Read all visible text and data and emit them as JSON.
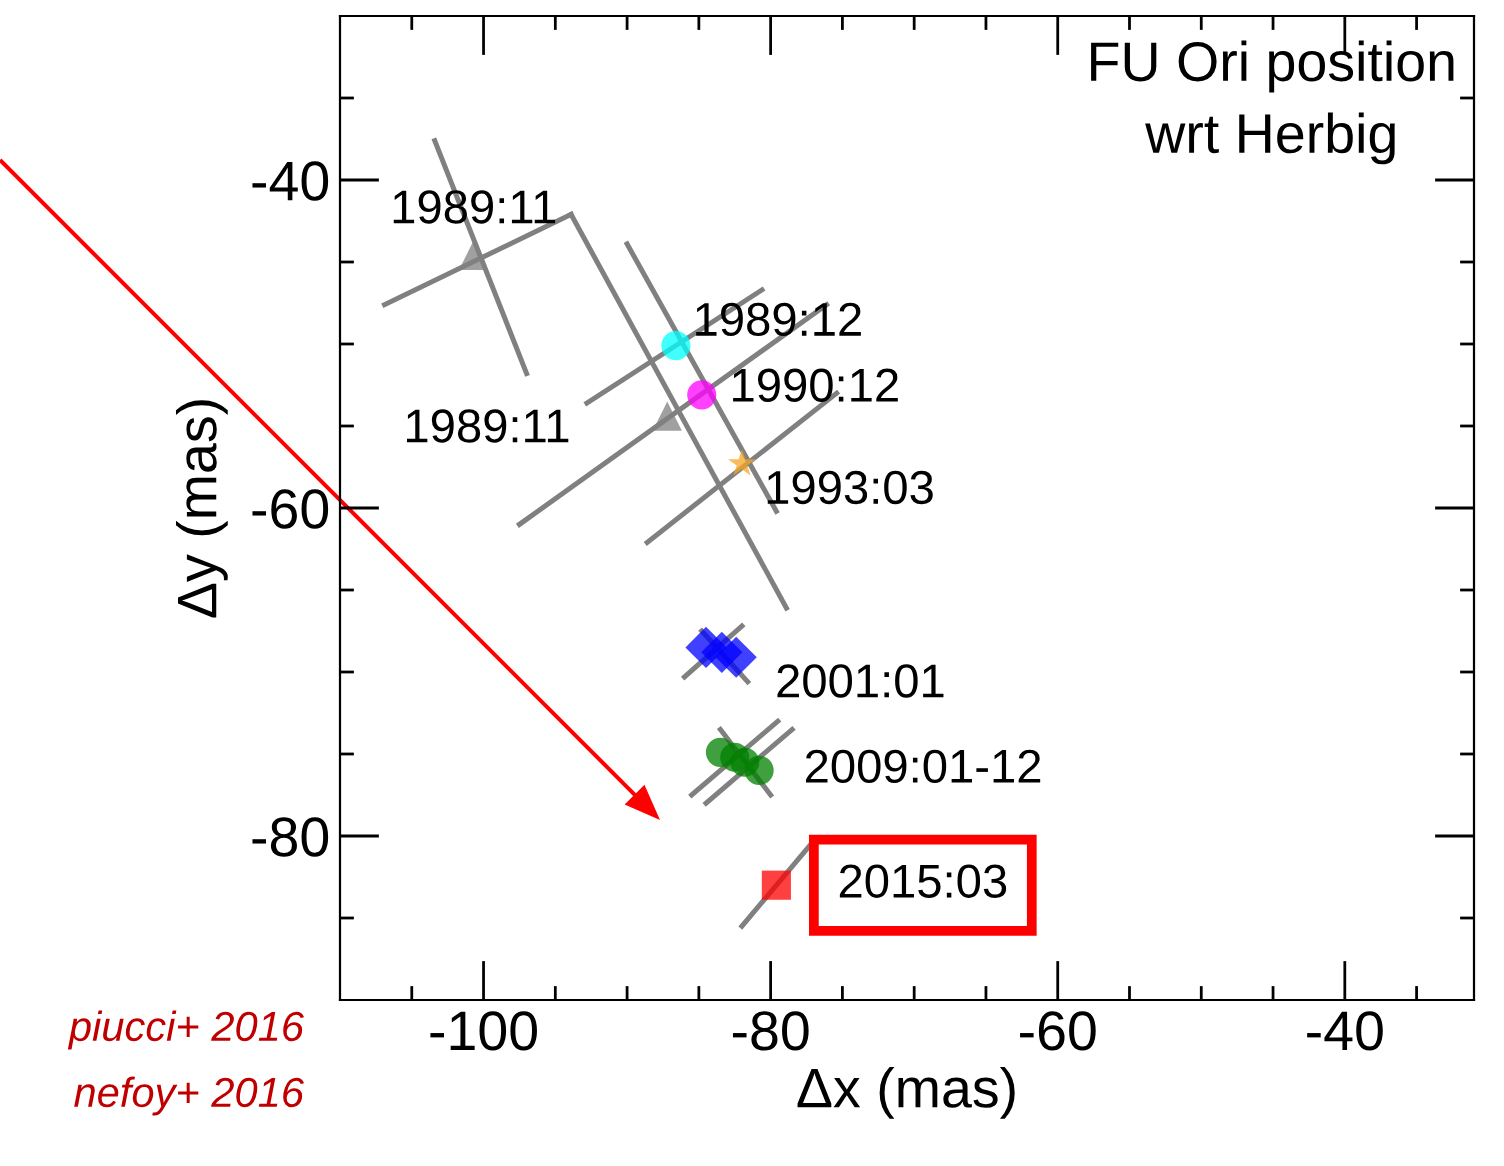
{
  "chart_data": {
    "type": "scatter",
    "xlabel": "Δx (mas)",
    "ylabel": "Δy (mas)",
    "xlim": [
      -110,
      -31
    ],
    "ylim": [
      -90,
      -30
    ],
    "xticks": [
      {
        "value": -105,
        "label": null
      },
      -100,
      {
        "value": -95,
        "label": null
      },
      {
        "value": -90,
        "label": null
      },
      {
        "value": -85,
        "label": null
      },
      -80,
      {
        "value": -75,
        "label": null
      },
      {
        "value": -70,
        "label": null
      },
      {
        "value": -65,
        "label": null
      },
      -60,
      {
        "value": -55,
        "label": null
      },
      {
        "value": -50,
        "label": null
      },
      {
        "value": -45,
        "label": null
      },
      -40,
      {
        "value": -35,
        "label": null
      }
    ],
    "yticks": [
      {
        "value": -85,
        "label": null
      },
      -80,
      {
        "value": -75,
        "label": null
      },
      {
        "value": -70,
        "label": null
      },
      {
        "value": -65,
        "label": null
      },
      -60,
      {
        "value": -55,
        "label": null
      },
      {
        "value": -50,
        "label": null
      },
      {
        "value": -45,
        "label": null
      },
      -40,
      {
        "value": -35,
        "label": null
      }
    ],
    "grid": false,
    "series": [
      {
        "type": "line",
        "color": "#808080",
        "marker": "none",
        "x": [
          -103.4,
          -97.0
        ],
        "values": [
          -37.6,
          -51.8
        ]
      },
      {
        "type": "line",
        "color": "#808080",
        "marker": "none",
        "x": [
          -106.9,
          -93.9
        ],
        "values": [
          -47.6,
          -42.1
        ]
      },
      {
        "type": "line",
        "color": "#808080",
        "marker": "none",
        "x": [
          -93.9,
          -78.9
        ],
        "values": [
          -42.1,
          -66.1
        ]
      },
      {
        "type": "line",
        "color": "#808080",
        "marker": "none",
        "x": [
          -97.5,
          -76.1
        ],
        "values": [
          -61.0,
          -47.6
        ]
      },
      {
        "type": "line",
        "color": "#808080",
        "marker": "none",
        "x": [
          -90.0,
          -79.6
        ],
        "values": [
          -43.9,
          -60.2
        ]
      },
      {
        "type": "line",
        "color": "#808080",
        "marker": "none",
        "x": [
          -92.8,
          -80.6
        ],
        "values": [
          -53.6,
          -46.7
        ]
      },
      {
        "type": "line",
        "color": "#808080",
        "marker": "none",
        "x": [
          -88.6,
          -75.4
        ],
        "values": [
          -62.1,
          -53.0
        ]
      },
      {
        "type": "line",
        "color": "#808080",
        "marker": "none",
        "x": [
          -86.0,
          -82.0
        ],
        "values": [
          -70.3,
          -67.2
        ]
      },
      {
        "type": "line",
        "color": "#808080",
        "marker": "none",
        "x": [
          -84.8,
          -81.6
        ],
        "values": [
          -67.5,
          -70.6
        ]
      },
      {
        "type": "line",
        "color": "#808080",
        "marker": "none",
        "x": [
          -85.5,
          -79.5
        ],
        "values": [
          -77.5,
          -73.0
        ]
      },
      {
        "type": "line",
        "color": "#808080",
        "marker": "none",
        "x": [
          -84.5,
          -78.5
        ],
        "values": [
          -78.0,
          -73.5
        ]
      },
      {
        "type": "line",
        "color": "#808080",
        "marker": "none",
        "x": [
          -83.5,
          -80.0
        ],
        "values": [
          -73.5,
          -77.5
        ]
      },
      {
        "type": "line",
        "color": "#808080",
        "marker": "none",
        "x": [
          -82.0,
          -77.2
        ],
        "values": [
          -85.5,
          -80.5
        ]
      },
      {
        "color": "#808080",
        "marker": "triangle",
        "x": [
          -100.7,
          -87.2
        ],
        "values": [
          -44.6,
          -54.4
        ]
      },
      {
        "color": "#00ffff",
        "marker": "circle",
        "x": [
          -86.6
        ],
        "values": [
          -50.1
        ]
      },
      {
        "color": "#ff00ff",
        "marker": "circle",
        "x": [
          -84.8
        ],
        "values": [
          -53.1
        ]
      },
      {
        "color": "#f5a623",
        "marker": "star",
        "x": [
          -82.0
        ],
        "values": [
          -57.3
        ]
      },
      {
        "color": "#0000ff",
        "marker": "diamond",
        "x": [
          -84.5,
          -83.4,
          -82.4
        ],
        "values": [
          -68.5,
          -68.8,
          -69.1
        ]
      },
      {
        "color": "#008000",
        "marker": "circle",
        "x": [
          -83.5,
          -82.5,
          -81.8,
          -80.8
        ],
        "values": [
          -74.9,
          -75.2,
          -75.5,
          -76.0
        ]
      },
      {
        "color": "#ff0000",
        "marker": "square",
        "x": [
          -79.6
        ],
        "values": [
          -83.0
        ]
      }
    ],
    "annotations": [
      {
        "text": "1989:11",
        "x": -100.7,
        "y": -44.6
      },
      {
        "text": "1989:11",
        "x": -87.2,
        "y": -54.4
      },
      {
        "text": "1989:12",
        "x": -86.6,
        "y": -50.1
      },
      {
        "text": "1990:12",
        "x": -84.8,
        "y": -53.1
      },
      {
        "text": "1993:03",
        "x": -82.0,
        "y": -57.3
      },
      {
        "text": "2001:01",
        "x": -82.4,
        "y": -69.1
      },
      {
        "text": "2009:01-12",
        "x": -80.8,
        "y": -76.0
      },
      {
        "text": "2015:03",
        "x": -79.6,
        "y": -83.0
      },
      "FU Ori position\nwrt Herbig",
      "piucci+ 2016",
      "nefoy+ 2016"
    ]
  }
}
